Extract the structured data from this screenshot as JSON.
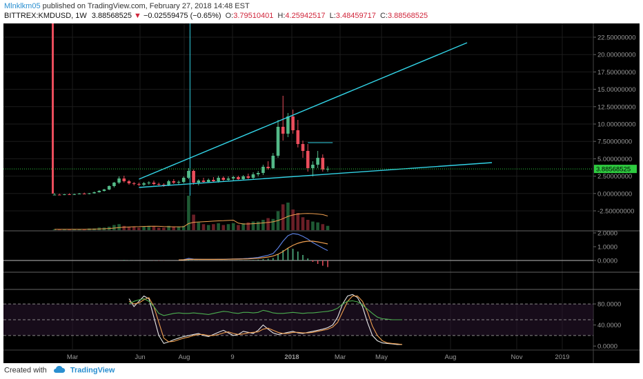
{
  "header": {
    "user": "Mlnklkm05",
    "published_text": "published on TradingView.com, February 27, 2018 14:48 EST",
    "symbol": "BITTREX:KMDUSD, 1W",
    "last": "3.88568525",
    "arrow": "▼",
    "change": "−0.02559475 (−0.65%)",
    "o_label": "O:",
    "o_value": "3.79510401",
    "h_label": "H:",
    "h_value": "4.25942517",
    "l_label": "L:",
    "l_value": "3.48459717",
    "c_label": "C:",
    "c_value": "3.88568525"
  },
  "footer": {
    "created": "Created with",
    "brand": "TradingView",
    "icon": "cloud-icon"
  },
  "colors": {
    "background": "#000000",
    "up": "#53b987",
    "down": "#eb4d5c",
    "trend": "#32d3e6",
    "grid": "#1c1c1c",
    "ma": "#f0a050",
    "macd": "#5b7fe0",
    "signal": "#f0a050",
    "k_line": "#e8e8e8",
    "d_line": "#f0a050",
    "rsi": "#4caf50",
    "stoch_band": "#2a1530"
  },
  "chart_data": [
    {
      "type": "candlestick",
      "panel": "price",
      "x_ticks": [
        "Mar",
        "Jun",
        "Aug",
        "9",
        "2018",
        "Mar",
        "May",
        "Aug",
        "Nov",
        "2019"
      ],
      "y_ticks": [
        "22.50000000",
        "20.00000000",
        "17.50000000",
        "15.00000000",
        "12.50000000",
        "10.00000000",
        "7.50000000",
        "5.00000000",
        "2.50000000",
        "0.00000000",
        "-2.50000000"
      ],
      "ylim": [
        -5,
        25
      ],
      "last_price_label": "3.88568525",
      "candles": [
        {
          "o": 0.1,
          "h": 0.4,
          "l": 0.05,
          "c": 0.15
        },
        {
          "o": 0.15,
          "h": 0.3,
          "l": 0.1,
          "c": 0.12
        },
        {
          "o": 0.12,
          "h": 0.25,
          "l": 0.08,
          "c": 0.2
        },
        {
          "o": 0.2,
          "h": 0.35,
          "l": 0.15,
          "c": 0.18
        },
        {
          "o": 0.18,
          "h": 0.3,
          "l": 0.1,
          "c": 0.22
        },
        {
          "o": 0.22,
          "h": 0.4,
          "l": 0.2,
          "c": 0.3
        },
        {
          "o": 0.3,
          "h": 0.45,
          "l": 0.25,
          "c": 0.28
        },
        {
          "o": 0.28,
          "h": 0.4,
          "l": 0.2,
          "c": 0.35
        },
        {
          "o": 0.35,
          "h": 0.6,
          "l": 0.3,
          "c": 0.5
        },
        {
          "o": 0.5,
          "h": 0.8,
          "l": 0.45,
          "c": 0.7
        },
        {
          "o": 0.7,
          "h": 1.0,
          "l": 0.6,
          "c": 0.9
        },
        {
          "o": 0.9,
          "h": 1.5,
          "l": 0.8,
          "c": 1.4
        },
        {
          "o": 1.4,
          "h": 2.0,
          "l": 1.2,
          "c": 1.9
        },
        {
          "o": 1.9,
          "h": 2.8,
          "l": 1.7,
          "c": 2.5
        },
        {
          "o": 2.5,
          "h": 2.9,
          "l": 1.9,
          "c": 2.1
        },
        {
          "o": 2.1,
          "h": 2.3,
          "l": 1.6,
          "c": 1.8
        },
        {
          "o": 1.8,
          "h": 2.0,
          "l": 1.5,
          "c": 1.7
        },
        {
          "o": 1.7,
          "h": 1.9,
          "l": 1.4,
          "c": 1.6
        },
        {
          "o": 1.6,
          "h": 2.0,
          "l": 1.4,
          "c": 1.8
        },
        {
          "o": 1.8,
          "h": 2.1,
          "l": 1.6,
          "c": 1.9
        },
        {
          "o": 1.9,
          "h": 2.2,
          "l": 1.5,
          "c": 1.7
        },
        {
          "o": 1.7,
          "h": 1.9,
          "l": 1.4,
          "c": 1.6
        },
        {
          "o": 1.6,
          "h": 1.8,
          "l": 1.3,
          "c": 1.5
        },
        {
          "o": 1.5,
          "h": 2.3,
          "l": 1.4,
          "c": 2.1
        },
        {
          "o": 2.1,
          "h": 2.4,
          "l": 1.7,
          "c": 1.9
        },
        {
          "o": 1.9,
          "h": 2.2,
          "l": 1.6,
          "c": 2.0
        },
        {
          "o": 2.0,
          "h": 2.8,
          "l": 1.8,
          "c": 2.6
        },
        {
          "o": 2.6,
          "h": 4.0,
          "l": 2.4,
          "c": 3.6
        },
        {
          "o": 3.6,
          "h": 3.8,
          "l": 1.6,
          "c": 1.9
        },
        {
          "o": 1.9,
          "h": 2.4,
          "l": 1.5,
          "c": 2.2
        },
        {
          "o": 2.2,
          "h": 2.6,
          "l": 1.8,
          "c": 2.0
        },
        {
          "o": 2.0,
          "h": 2.5,
          "l": 1.9,
          "c": 2.3
        },
        {
          "o": 2.3,
          "h": 2.7,
          "l": 1.9,
          "c": 2.1
        },
        {
          "o": 2.1,
          "h": 2.9,
          "l": 1.9,
          "c": 2.6
        },
        {
          "o": 2.6,
          "h": 2.8,
          "l": 2.0,
          "c": 2.3
        },
        {
          "o": 2.3,
          "h": 2.8,
          "l": 2.1,
          "c": 2.5
        },
        {
          "o": 2.5,
          "h": 2.9,
          "l": 2.2,
          "c": 2.7
        },
        {
          "o": 2.7,
          "h": 2.9,
          "l": 2.3,
          "c": 2.4
        },
        {
          "o": 2.4,
          "h": 3.0,
          "l": 2.2,
          "c": 2.8
        },
        {
          "o": 2.8,
          "h": 3.2,
          "l": 2.4,
          "c": 2.6
        },
        {
          "o": 2.6,
          "h": 3.4,
          "l": 2.4,
          "c": 3.1
        },
        {
          "o": 3.1,
          "h": 3.6,
          "l": 2.8,
          "c": 3.3
        },
        {
          "o": 3.3,
          "h": 4.5,
          "l": 3.0,
          "c": 4.2
        },
        {
          "o": 4.2,
          "h": 5.0,
          "l": 3.8,
          "c": 4.0
        },
        {
          "o": 4.0,
          "h": 6.2,
          "l": 3.9,
          "c": 5.8
        },
        {
          "o": 5.8,
          "h": 11.0,
          "l": 5.5,
          "c": 10.0
        },
        {
          "o": 10.0,
          "h": 14.5,
          "l": 8.0,
          "c": 9.0
        },
        {
          "o": 9.0,
          "h": 12.0,
          "l": 8.5,
          "c": 11.5
        },
        {
          "o": 11.5,
          "h": 12.5,
          "l": 9.0,
          "c": 9.5
        },
        {
          "o": 9.5,
          "h": 11.0,
          "l": 7.0,
          "c": 7.5
        },
        {
          "o": 7.5,
          "h": 8.0,
          "l": 5.5,
          "c": 6.5
        },
        {
          "o": 6.5,
          "h": 7.5,
          "l": 3.5,
          "c": 4.0
        },
        {
          "o": 4.0,
          "h": 5.0,
          "l": 2.8,
          "c": 4.5
        },
        {
          "o": 4.5,
          "h": 6.5,
          "l": 4.0,
          "c": 5.5
        },
        {
          "o": 5.5,
          "h": 6.0,
          "l": 3.5,
          "c": 3.8
        },
        {
          "o": 3.8,
          "h": 4.26,
          "l": 3.48,
          "c": 3.89
        }
      ],
      "volume": [
        1,
        1,
        1,
        1,
        1,
        1,
        1,
        2,
        2,
        3,
        3,
        4,
        6,
        7,
        5,
        4,
        4,
        3,
        4,
        5,
        4,
        3,
        3,
        5,
        4,
        4,
        5,
        40,
        18,
        9,
        7,
        6,
        7,
        8,
        6,
        7,
        8,
        6,
        8,
        9,
        10,
        10,
        12,
        14,
        13,
        22,
        30,
        32,
        24,
        20,
        15,
        12,
        10,
        9,
        7,
        5
      ]
    },
    {
      "type": "line",
      "panel": "macd",
      "y_ticks": [
        "2.0000",
        "1.0000",
        "0.0000"
      ],
      "ylim": [
        -0.8,
        2.1
      ],
      "series": [
        {
          "values": [
            0.0,
            0.0,
            0.0,
            0.0,
            0.0,
            0.0,
            0.0,
            0.0,
            0.0,
            0.0,
            0.0,
            0.0,
            0.0,
            0.05,
            0.08,
            0.07,
            0.06,
            0.05,
            0.05,
            0.05,
            0.04,
            0.03,
            0.03,
            0.04,
            0.04,
            0.04,
            0.06,
            0.15,
            0.1,
            0.09,
            0.08,
            0.08,
            0.08,
            0.09,
            0.09,
            0.1,
            0.11,
            0.12,
            0.13,
            0.15,
            0.18,
            0.22,
            0.3,
            0.38,
            0.5,
            0.9,
            1.4,
            1.8,
            1.95,
            1.9,
            1.75,
            1.55,
            1.3,
            1.1,
            0.9,
            0.72
          ]
        },
        {
          "values": [
            0.0,
            0.0,
            0.0,
            0.0,
            0.0,
            0.0,
            0.0,
            0.0,
            0.0,
            0.0,
            0.0,
            0.0,
            0.0,
            0.02,
            0.04,
            0.05,
            0.05,
            0.05,
            0.05,
            0.05,
            0.05,
            0.05,
            0.04,
            0.04,
            0.04,
            0.04,
            0.05,
            0.08,
            0.08,
            0.08,
            0.08,
            0.08,
            0.08,
            0.08,
            0.08,
            0.09,
            0.1,
            0.1,
            0.11,
            0.12,
            0.14,
            0.16,
            0.2,
            0.25,
            0.32,
            0.45,
            0.65,
            0.9,
            1.1,
            1.25,
            1.35,
            1.4,
            1.4,
            1.35,
            1.28,
            1.2
          ]
        }
      ],
      "histogram": [
        0.0,
        0.0,
        0.0,
        0.0,
        0.0,
        0.0,
        0.0,
        0.0,
        0.0,
        0.0,
        0.0,
        0.0,
        0.0,
        0.03,
        0.04,
        0.02,
        0.01,
        0.0,
        0.0,
        0.0,
        -0.01,
        -0.02,
        -0.01,
        0.0,
        0.0,
        0.0,
        0.01,
        0.07,
        0.02,
        0.01,
        0.0,
        0.0,
        0.0,
        0.01,
        0.01,
        0.01,
        0.01,
        0.02,
        0.02,
        0.03,
        0.04,
        0.06,
        0.1,
        0.13,
        0.18,
        0.45,
        0.75,
        0.9,
        0.85,
        0.65,
        0.4,
        0.15,
        -0.1,
        -0.25,
        -0.38,
        -0.48
      ]
    },
    {
      "type": "line",
      "panel": "stochastic",
      "y_ticks": [
        "80.0000",
        "40.0000",
        "0.0000"
      ],
      "ylim": [
        -5,
        105
      ],
      "bands": [
        20,
        50,
        80
      ],
      "series": [
        {
          "values": [
            90,
            75,
            85,
            95,
            90,
            55,
            20,
            5,
            8,
            12,
            15,
            18,
            20,
            22,
            24,
            20,
            18,
            22,
            26,
            30,
            25,
            20,
            22,
            28,
            26,
            24,
            30,
            40,
            32,
            25,
            22,
            24,
            26,
            28,
            25,
            24,
            26,
            28,
            30,
            32,
            35,
            40,
            55,
            80,
            95,
            98,
            92,
            75,
            45,
            20,
            10,
            6,
            5,
            4,
            3,
            3
          ]
        },
        {
          "values": [
            85,
            80,
            82,
            88,
            92,
            75,
            45,
            15,
            8,
            9,
            12,
            15,
            17,
            20,
            22,
            22,
            20,
            20,
            22,
            25,
            27,
            24,
            22,
            23,
            25,
            26,
            27,
            32,
            34,
            30,
            26,
            24,
            24,
            26,
            26,
            25,
            25,
            26,
            28,
            30,
            32,
            36,
            45,
            65,
            85,
            95,
            95,
            85,
            65,
            38,
            20,
            10,
            6,
            5,
            4,
            3
          ]
        },
        {
          "values": [
            80,
            85,
            88,
            90,
            85,
            75,
            62,
            58,
            60,
            62,
            63,
            62,
            62,
            63,
            62,
            61,
            60,
            62,
            64,
            66,
            65,
            63,
            62,
            64,
            64,
            63,
            64,
            68,
            66,
            63,
            62,
            62,
            63,
            64,
            63,
            62,
            63,
            63,
            64,
            65,
            66,
            68,
            72,
            80,
            85,
            86,
            84,
            78,
            70,
            62,
            55,
            52,
            51,
            50,
            50,
            50
          ]
        }
      ]
    }
  ]
}
